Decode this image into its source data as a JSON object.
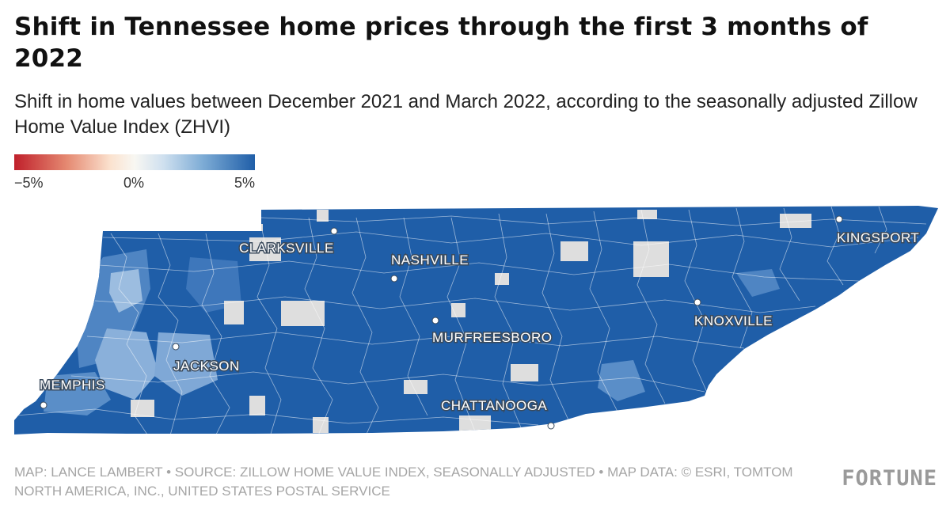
{
  "title": "Shift in Tennessee home prices through the first 3 months of 2022",
  "subtitle": "Shift in home values between December 2021 and March 2022, according to the seasonally adjusted Zillow Home Value Index (ZHVI)",
  "legend": {
    "min_label": "−5%",
    "mid_label": "0%",
    "max_label": "5%",
    "colors": {
      "negative": "#c0202b",
      "neutral": "#f8f7f2",
      "positive": "#1f5ea8"
    }
  },
  "map": {
    "region_color": "#1f5ea8",
    "no_data_color": "#dedede",
    "cities": {
      "clarksville": "CLARKSVILLE",
      "nashville": "NASHVILLE",
      "kingsport": "KINGSPORT",
      "murfreesboro": "MURFREESBORO",
      "knoxville": "KNOXVILLE",
      "jackson": "JACKSON",
      "memphis": "MEMPHIS",
      "chattanooga": "CHATTANOOGA"
    }
  },
  "footer": "MAP: LANCE LAMBERT • SOURCE: ZILLOW HOME VALUE INDEX, SEASONALLY ADJUSTED • MAP DATA: © ESRI, TOMTOM NORTH AMERICA, INC., UNITED STATES POSTAL SERVICE",
  "brand": "FORTUNE"
}
